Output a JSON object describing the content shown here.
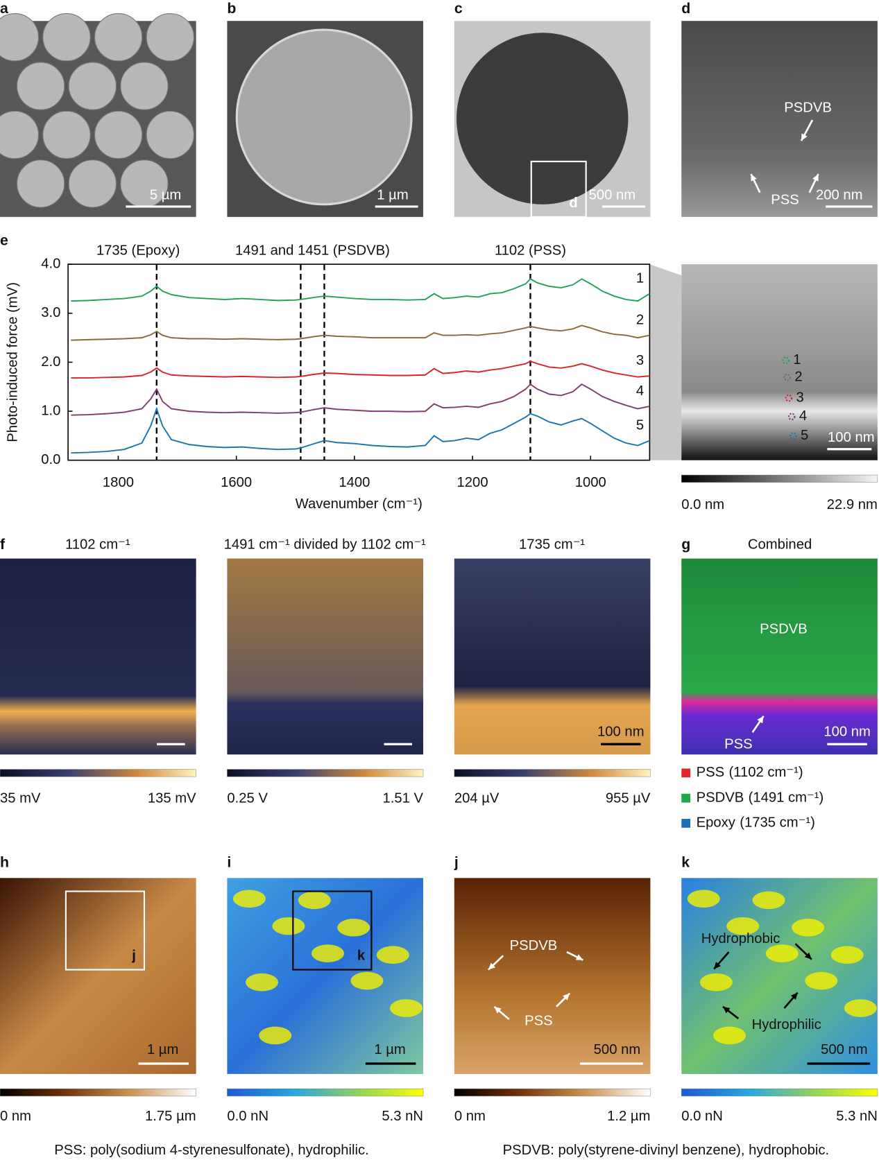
{
  "row1": [
    {
      "label": "a",
      "scale_bar": "5 µm"
    },
    {
      "label": "b",
      "scale_bar": "1 µm"
    },
    {
      "label": "c",
      "scale_bar": "500 nm",
      "inset": "d"
    },
    {
      "label": "d",
      "scale_bar": "200 nm",
      "arrows": [
        "PSDVB",
        "PSS"
      ]
    }
  ],
  "chart_data": {
    "type": "line",
    "panel_label": "e",
    "xlabel": "Wavenumber (cm⁻¹)",
    "ylabel": "Photo-induced force (mV)",
    "xlim": [
      1885,
      900
    ],
    "ylim": [
      0,
      4
    ],
    "xticks": [
      1800,
      1600,
      1400,
      1200,
      1000
    ],
    "yticks": [
      {
        "value": 0,
        "label": "0.0"
      },
      {
        "value": 1,
        "label": "1.0"
      },
      {
        "value": 2,
        "label": "2.0"
      },
      {
        "value": 3,
        "label": "3.0"
      },
      {
        "value": 4,
        "label": "4.0"
      }
    ],
    "vlines": [
      1735,
      1491,
      1451,
      1102
    ],
    "annotations": [
      "1735 (Epoxy)",
      "1491 and 1451 (PSDVB)",
      "1102 (PSS)"
    ],
    "x": [
      1880,
      1850,
      1820,
      1790,
      1760,
      1745,
      1735,
      1725,
      1710,
      1680,
      1650,
      1620,
      1590,
      1560,
      1530,
      1500,
      1491,
      1470,
      1451,
      1430,
      1400,
      1370,
      1340,
      1310,
      1280,
      1265,
      1250,
      1230,
      1210,
      1190,
      1170,
      1150,
      1130,
      1110,
      1102,
      1090,
      1070,
      1050,
      1030,
      1015,
      1000,
      980,
      960,
      940,
      920,
      900
    ],
    "series": [
      {
        "name": "1",
        "color": "#23a05a",
        "values": [
          3.25,
          3.26,
          3.28,
          3.3,
          3.35,
          3.45,
          3.55,
          3.45,
          3.38,
          3.32,
          3.3,
          3.28,
          3.3,
          3.28,
          3.26,
          3.27,
          3.28,
          3.32,
          3.35,
          3.33,
          3.3,
          3.28,
          3.28,
          3.27,
          3.28,
          3.4,
          3.3,
          3.32,
          3.35,
          3.33,
          3.4,
          3.42,
          3.5,
          3.6,
          3.7,
          3.62,
          3.55,
          3.52,
          3.58,
          3.7,
          3.6,
          3.45,
          3.35,
          3.28,
          3.25,
          3.4
        ]
      },
      {
        "name": "2",
        "color": "#8a6a3c",
        "values": [
          2.45,
          2.46,
          2.47,
          2.48,
          2.5,
          2.56,
          2.63,
          2.55,
          2.5,
          2.48,
          2.48,
          2.47,
          2.48,
          2.47,
          2.46,
          2.47,
          2.48,
          2.52,
          2.55,
          2.53,
          2.52,
          2.5,
          2.5,
          2.5,
          2.5,
          2.6,
          2.55,
          2.55,
          2.56,
          2.55,
          2.58,
          2.6,
          2.65,
          2.7,
          2.73,
          2.7,
          2.66,
          2.64,
          2.68,
          2.75,
          2.7,
          2.62,
          2.57,
          2.55,
          2.5,
          2.55
        ]
      },
      {
        "name": "3",
        "color": "#d7262b",
        "values": [
          1.68,
          1.68,
          1.69,
          1.7,
          1.73,
          1.8,
          1.88,
          1.8,
          1.74,
          1.72,
          1.71,
          1.7,
          1.71,
          1.7,
          1.69,
          1.7,
          1.71,
          1.75,
          1.78,
          1.77,
          1.75,
          1.74,
          1.73,
          1.73,
          1.74,
          1.87,
          1.77,
          1.79,
          1.82,
          1.8,
          1.84,
          1.87,
          1.92,
          1.97,
          2.02,
          1.97,
          1.9,
          1.88,
          1.92,
          1.97,
          1.92,
          1.84,
          1.78,
          1.74,
          1.7,
          1.72
        ]
      },
      {
        "name": "4",
        "color": "#7d3f6c",
        "values": [
          0.92,
          0.93,
          0.95,
          0.98,
          1.05,
          1.25,
          1.45,
          1.2,
          1.05,
          1.0,
          0.98,
          0.97,
          0.98,
          0.97,
          0.96,
          0.97,
          0.98,
          1.03,
          1.07,
          1.04,
          1.02,
          1.0,
          1.0,
          0.99,
          1.0,
          1.15,
          1.07,
          1.08,
          1.1,
          1.08,
          1.15,
          1.2,
          1.3,
          1.45,
          1.55,
          1.45,
          1.35,
          1.32,
          1.4,
          1.55,
          1.45,
          1.3,
          1.2,
          1.12,
          1.05,
          1.1
        ]
      },
      {
        "name": "5",
        "color": "#1d74b0",
        "values": [
          0.15,
          0.16,
          0.18,
          0.22,
          0.35,
          0.7,
          1.05,
          0.7,
          0.42,
          0.32,
          0.28,
          0.26,
          0.27,
          0.24,
          0.22,
          0.23,
          0.25,
          0.33,
          0.4,
          0.36,
          0.34,
          0.3,
          0.28,
          0.27,
          0.3,
          0.5,
          0.38,
          0.4,
          0.45,
          0.42,
          0.55,
          0.62,
          0.75,
          0.88,
          0.95,
          0.9,
          0.78,
          0.72,
          0.8,
          0.85,
          0.75,
          0.6,
          0.45,
          0.35,
          0.3,
          0.4
        ]
      }
    ]
  },
  "afm": {
    "scale_bar": "100 nm",
    "points": [
      "1",
      "2",
      "3",
      "4",
      "5"
    ],
    "colorbar": [
      "0.0 nm",
      "22.9 nm"
    ]
  },
  "row2": {
    "label": "f",
    "maps": [
      {
        "title": "1102 cm⁻¹",
        "colorbar": [
          "35 mV",
          "135 mV"
        ]
      },
      {
        "title": "1491 cm⁻¹ divided by 1102 cm⁻¹",
        "colorbar": [
          "0.25 V",
          "1.51 V"
        ]
      },
      {
        "title": "1735 cm⁻¹",
        "scale_bar": "100 nm",
        "colorbar": [
          "204 µV",
          "955 µV"
        ]
      }
    ],
    "combined": {
      "label": "g",
      "title": "Combined",
      "texts": [
        "PSDVB",
        "PSS"
      ],
      "scale_bar": "100 nm",
      "legend": [
        {
          "name": "PSS",
          "detail": "(1102 cm⁻¹)",
          "color": "#e3262c"
        },
        {
          "name": "PSDVB",
          "detail": "(1491 cm⁻¹)",
          "color": "#1ea84a"
        },
        {
          "name": "Epoxy",
          "detail": "(1735 cm⁻¹)",
          "color": "#1f6fb8"
        }
      ]
    }
  },
  "row3": [
    {
      "label": "h",
      "scale_bar": "1 µm",
      "inset": "j",
      "colorbar": [
        "0 nm",
        "1.75 µm"
      ]
    },
    {
      "label": "i",
      "scale_bar": "1 µm",
      "inset": "k",
      "colorbar": [
        "0.0 nN",
        "5.3 nN"
      ]
    },
    {
      "label": "j",
      "texts": [
        "PSDVB",
        "PSS"
      ],
      "scale_bar": "500 nm",
      "colorbar": [
        "0 nm",
        "1.2 µm"
      ]
    },
    {
      "label": "k",
      "texts": [
        "Hydrophobic",
        "Hydrophilic"
      ],
      "scale_bar": "500 nm",
      "colorbar": [
        "0.0 nN",
        "5.3 nN"
      ]
    }
  ],
  "footnotes": [
    "PSS: poly(sodium 4-styrenesulfonate), hydrophilic.",
    "PSDVB: poly(styrene-divinyl benzene), hydrophobic."
  ]
}
